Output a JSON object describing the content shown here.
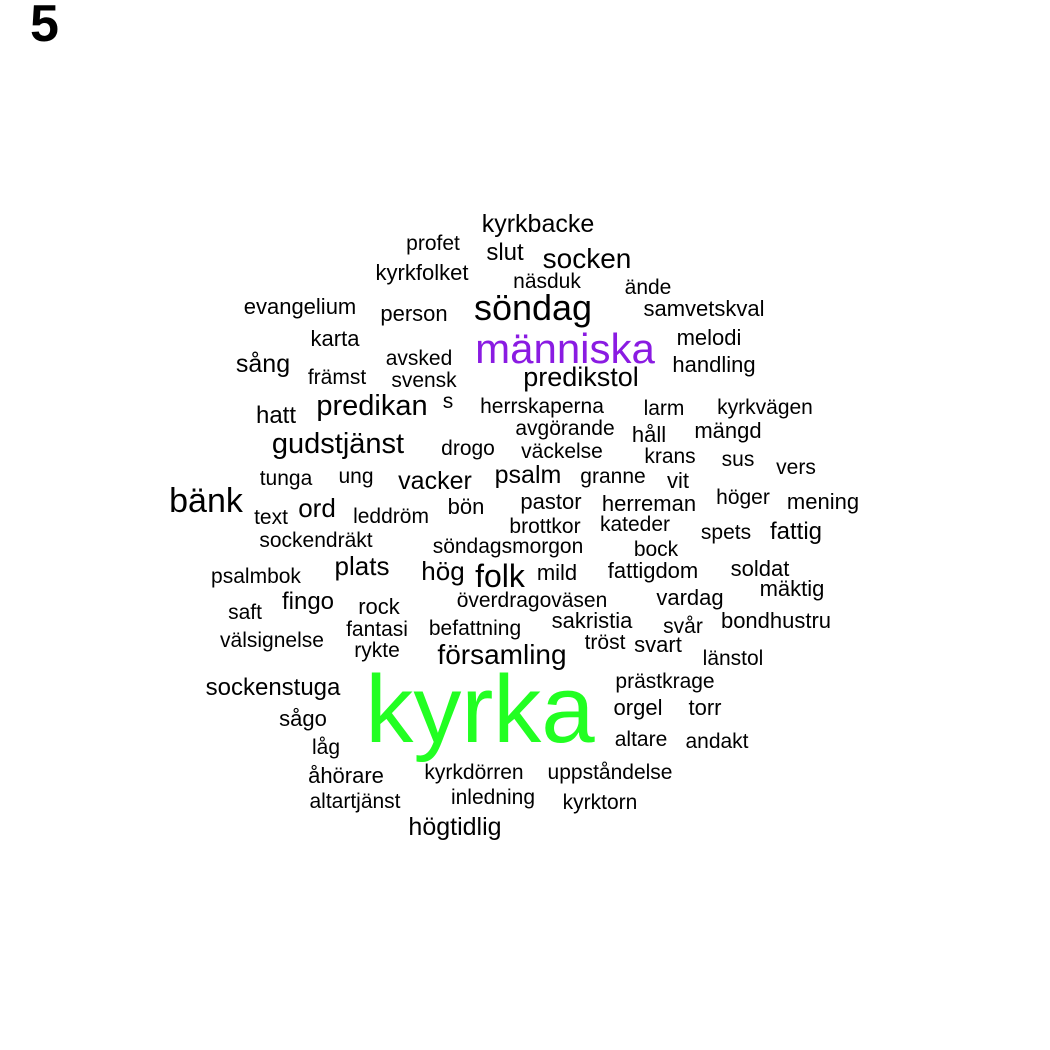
{
  "panel_label": "5",
  "colors": {
    "default": "#000000",
    "green": "#22ff22",
    "purple": "#8a1be2"
  },
  "words": [
    {
      "text": "kyrka",
      "size": 96,
      "color": "green"
    },
    {
      "text": "människa",
      "size": 42,
      "color": "purple"
    },
    {
      "text": "söndag",
      "size": 36
    },
    {
      "text": "bänk",
      "size": 34
    },
    {
      "text": "gudstjänst",
      "size": 29
    },
    {
      "text": "predikan",
      "size": 29
    },
    {
      "text": "folk",
      "size": 32
    },
    {
      "text": "församling",
      "size": 28
    },
    {
      "text": "predikstol",
      "size": 27
    },
    {
      "text": "socken",
      "size": 28
    },
    {
      "text": "kyrkbacke",
      "size": 25
    },
    {
      "text": "slut",
      "size": 24
    },
    {
      "text": "psalm",
      "size": 25
    },
    {
      "text": "vacker",
      "size": 25
    },
    {
      "text": "ord",
      "size": 26
    },
    {
      "text": "plats",
      "size": 26
    },
    {
      "text": "hög",
      "size": 26
    },
    {
      "text": "sång",
      "size": 25
    },
    {
      "text": "högtidlig",
      "size": 25
    },
    {
      "text": "sockenstuga",
      "size": 24
    },
    {
      "text": "fingo",
      "size": 24
    },
    {
      "text": "fattig",
      "size": 24
    },
    {
      "text": "profet",
      "size": 21
    },
    {
      "text": "kyrkfolket",
      "size": 22
    },
    {
      "text": "näsduk",
      "size": 21
    },
    {
      "text": "ände",
      "size": 21
    },
    {
      "text": "evangelium",
      "size": 22
    },
    {
      "text": "person",
      "size": 22
    },
    {
      "text": "samvetskval",
      "size": 22
    },
    {
      "text": "karta",
      "size": 22
    },
    {
      "text": "melodi",
      "size": 22
    },
    {
      "text": "avsked",
      "size": 21
    },
    {
      "text": "handling",
      "size": 22
    },
    {
      "text": "främst",
      "size": 21
    },
    {
      "text": "svensk",
      "size": 21
    },
    {
      "text": "hatt",
      "size": 24
    },
    {
      "text": "s",
      "size": 21
    },
    {
      "text": "herrskaperna",
      "size": 21
    },
    {
      "text": "larm",
      "size": 21
    },
    {
      "text": "kyrkvägen",
      "size": 21
    },
    {
      "text": "avgörande",
      "size": 21
    },
    {
      "text": "håll",
      "size": 22
    },
    {
      "text": "mängd",
      "size": 22
    },
    {
      "text": "drogo",
      "size": 21
    },
    {
      "text": "väckelse",
      "size": 21
    },
    {
      "text": "krans",
      "size": 21
    },
    {
      "text": "sus",
      "size": 21
    },
    {
      "text": "vers",
      "size": 21
    },
    {
      "text": "tunga",
      "size": 21
    },
    {
      "text": "ung",
      "size": 21
    },
    {
      "text": "granne",
      "size": 21
    },
    {
      "text": "vit",
      "size": 22
    },
    {
      "text": "höger",
      "size": 21
    },
    {
      "text": "mening",
      "size": 22
    },
    {
      "text": "text",
      "size": 21
    },
    {
      "text": "leddröm",
      "size": 21
    },
    {
      "text": "bön",
      "size": 22
    },
    {
      "text": "pastor",
      "size": 22
    },
    {
      "text": "herreman",
      "size": 22
    },
    {
      "text": "brottkor",
      "size": 21
    },
    {
      "text": "kateder",
      "size": 21
    },
    {
      "text": "spets",
      "size": 21
    },
    {
      "text": "sockendräkt",
      "size": 21
    },
    {
      "text": "söndagsmorgon",
      "size": 21
    },
    {
      "text": "bock",
      "size": 21
    },
    {
      "text": "psalmbok",
      "size": 21
    },
    {
      "text": "mild",
      "size": 22
    },
    {
      "text": "fattigdom",
      "size": 22
    },
    {
      "text": "soldat",
      "size": 22
    },
    {
      "text": "mäktig",
      "size": 22
    },
    {
      "text": "saft",
      "size": 21
    },
    {
      "text": "rock",
      "size": 22
    },
    {
      "text": "överdragoväsen",
      "size": 21
    },
    {
      "text": "vardag",
      "size": 22
    },
    {
      "text": "sakristia",
      "size": 22
    },
    {
      "text": "svår",
      "size": 21
    },
    {
      "text": "bondhustru",
      "size": 22
    },
    {
      "text": "fantasi",
      "size": 21
    },
    {
      "text": "befattning",
      "size": 21
    },
    {
      "text": "välsignelse",
      "size": 21
    },
    {
      "text": "rykte",
      "size": 21
    },
    {
      "text": "tröst",
      "size": 21
    },
    {
      "text": "svart",
      "size": 22
    },
    {
      "text": "länstol",
      "size": 21
    },
    {
      "text": "prästkrage",
      "size": 21
    },
    {
      "text": "orgel",
      "size": 22
    },
    {
      "text": "torr",
      "size": 22
    },
    {
      "text": "sågo",
      "size": 22
    },
    {
      "text": "altare",
      "size": 21
    },
    {
      "text": "andakt",
      "size": 21
    },
    {
      "text": "låg",
      "size": 21
    },
    {
      "text": "åhörare",
      "size": 22
    },
    {
      "text": "kyrkdörren",
      "size": 21
    },
    {
      "text": "uppståndelse",
      "size": 21
    },
    {
      "text": "altartjänst",
      "size": 21
    },
    {
      "text": "inledning",
      "size": 21
    },
    {
      "text": "kyrktorn",
      "size": 21
    }
  ]
}
